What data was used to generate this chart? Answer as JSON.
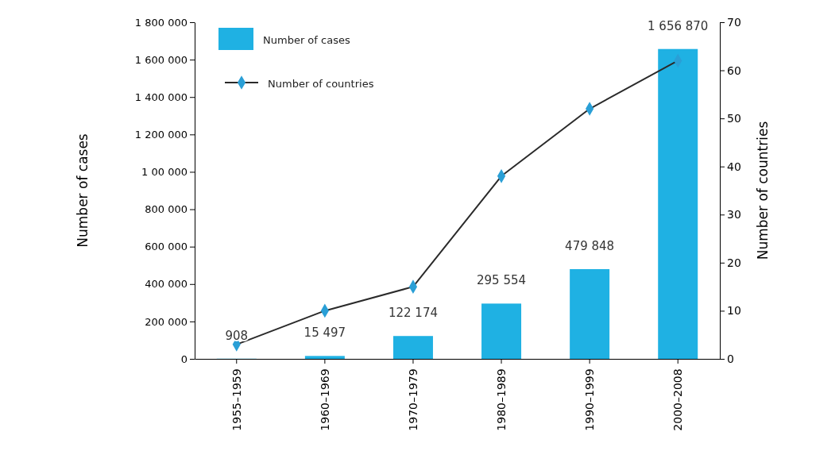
{
  "chart_data": {
    "type": "bar",
    "xlabel": null,
    "ylabel": "Number of cases",
    "y2label": "Number of countries",
    "categories": [
      "1955–1959",
      "1960–1969",
      "1970–1979",
      "1980–1989",
      "1990–1999",
      "2000–2008"
    ],
    "series": [
      {
        "name": "Number of cases",
        "color": "#1fb1e3",
        "values": [
          908,
          15497,
          122174,
          295554,
          479848,
          1656870
        ],
        "value_labels": [
          "908",
          "15 497",
          "122 174",
          "295 554",
          "479 848",
          "1 656 870"
        ]
      },
      {
        "name": "Number of countries",
        "type": "line",
        "axis": "y2",
        "color": "#2a2a2a",
        "values": [
          3,
          10,
          15,
          38,
          52,
          62
        ],
        "marker": "diamond",
        "line_style": "solid"
      }
    ],
    "ylim": [
      0,
      1800000
    ],
    "yticks": [
      0,
      {
        "value": 200000,
        "label": "200 000"
      },
      {
        "value": 400000,
        "label": "400 000"
      },
      {
        "value": 600000,
        "label": "600 000"
      },
      {
        "value": 800000,
        "label": "800 000"
      },
      {
        "value": 1000000,
        "label": "1 00 000"
      },
      {
        "value": 1200000,
        "label": "1 200 000"
      },
      {
        "value": 1400000,
        "label": "1 400 000"
      },
      {
        "value": 1600000,
        "label": "1 600 000"
      },
      {
        "value": 1800000,
        "label": "1 800 000"
      }
    ],
    "y2lim": [
      0,
      70
    ],
    "y2ticks": [
      0,
      10,
      20,
      30,
      40,
      50,
      60,
      70
    ],
    "legend": "top left",
    "grid": false
  }
}
